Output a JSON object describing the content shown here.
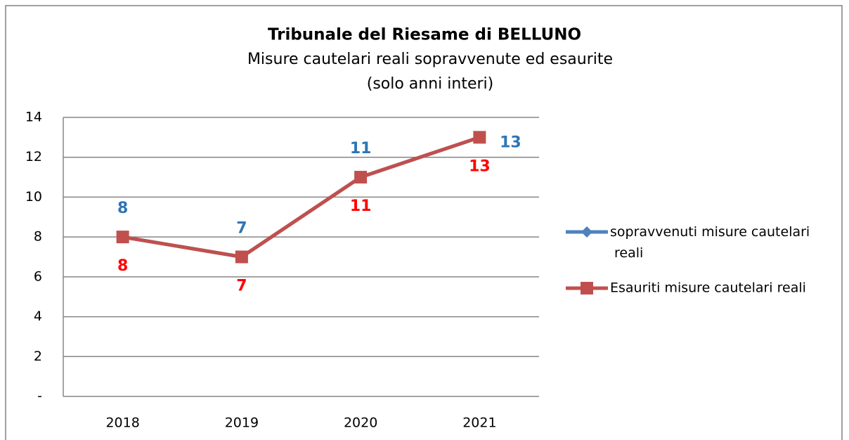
{
  "chart_data": {
    "type": "line",
    "title": "Tribunale del Riesame di BELLUNO",
    "subtitle": [
      "Misure cautelari reali sopravvenute ed esaurite",
      "(solo anni interi)"
    ],
    "categories": [
      "2018",
      "2019",
      "2020",
      "2021"
    ],
    "series": [
      {
        "name": "sopravvenuti misure cautelari reali",
        "color": "#4f81bd",
        "label_color": "#2e75b6",
        "marker": "diamond",
        "values": [
          8,
          7,
          11,
          13
        ]
      },
      {
        "name": "Esauriti misure cautelari reali",
        "color": "#c0504d",
        "label_color": "#ff0000",
        "marker": "square",
        "values": [
          8,
          7,
          11,
          13
        ]
      }
    ],
    "ylim": [
      0,
      14
    ],
    "yticks": [
      {
        "value": 0,
        "label": "-"
      },
      2,
      4,
      6,
      8,
      10,
      12,
      14
    ],
    "grid": true,
    "legend": "right"
  }
}
